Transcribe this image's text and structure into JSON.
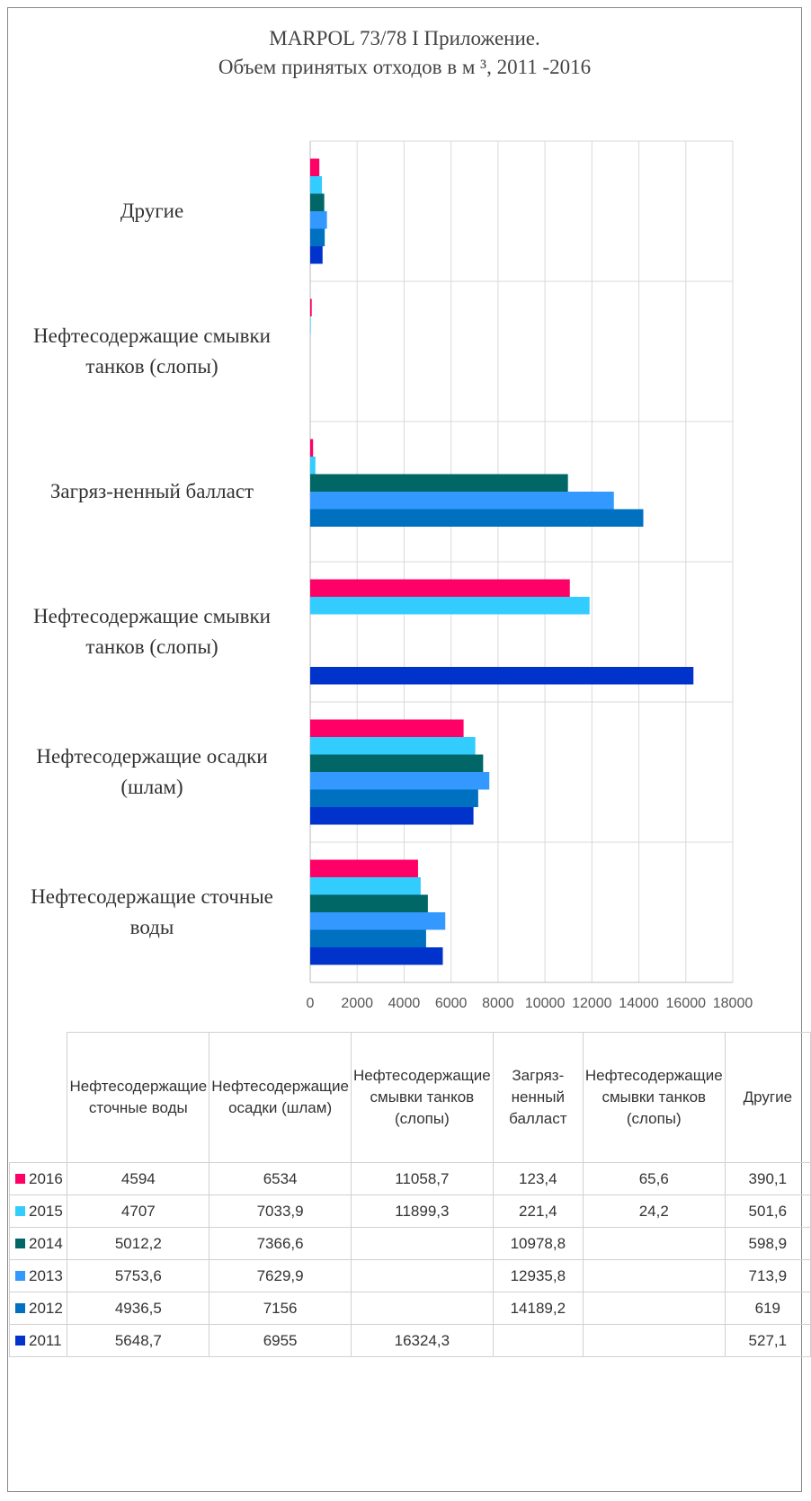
{
  "chart_data": {
    "type": "bar",
    "orientation": "horizontal",
    "title": [
      "MARPOL 73/78 I Приложение.",
      "Объем принятых отходов в м ³, 2011 -2016"
    ],
    "categories": [
      "Нефтесодержащие сточные воды",
      "Нефтесодержащие осадки (шлам)",
      "Нефтесодержащие смывки танков (слопы)",
      "Загряз-ненный балласт",
      "Нефтесодержащие смывки танков (слопы)",
      "Другие"
    ],
    "series": [
      {
        "name": "2016",
        "color": "#ff0066",
        "values": [
          4594,
          6534,
          11058.7,
          123.4,
          65.6,
          390.1
        ],
        "value_labels": [
          "4594",
          "6534",
          "11058,7",
          "123,4",
          "65,6",
          "390,1"
        ]
      },
      {
        "name": "2015",
        "color": "#33ccff",
        "values": [
          4707,
          7033.9,
          11899.3,
          221.4,
          24.2,
          501.6
        ],
        "value_labels": [
          "4707",
          "7033,9",
          "11899,3",
          "221,4",
          "24,2",
          "501,6"
        ]
      },
      {
        "name": "2014",
        "color": "#006666",
        "values": [
          5012.2,
          7366.6,
          null,
          10978.8,
          null,
          598.9
        ],
        "value_labels": [
          "5012,2",
          "7366,6",
          null,
          "10978,8",
          null,
          "598,9"
        ]
      },
      {
        "name": "2013",
        "color": "#3399ff",
        "values": [
          5753.6,
          7629.9,
          null,
          12935.8,
          null,
          713.9
        ],
        "value_labels": [
          "5753,6",
          "7629,9",
          null,
          "12935,8",
          null,
          "713,9"
        ]
      },
      {
        "name": "2012",
        "color": "#0070c0",
        "values": [
          4936.5,
          7156,
          null,
          14189.2,
          null,
          619
        ],
        "value_labels": [
          "4936,5",
          "7156",
          null,
          "14189,2",
          null,
          "619"
        ]
      },
      {
        "name": "2011",
        "color": "#0033cc",
        "values": [
          5648.7,
          6955,
          16324.3,
          null,
          null,
          527.1
        ],
        "value_labels": [
          "5648,7",
          "6955",
          "16324,3",
          null,
          null,
          "527,1"
        ]
      }
    ],
    "xlim": [
      0,
      18000
    ],
    "xticks": [
      0,
      2000,
      4000,
      6000,
      8000,
      10000,
      12000,
      14000,
      16000,
      18000
    ],
    "grid": true
  }
}
